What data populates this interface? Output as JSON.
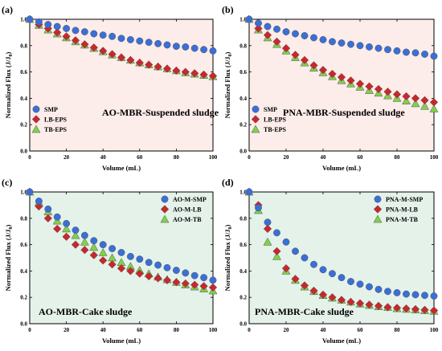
{
  "chart_data": [
    {
      "panel": "(a)",
      "type": "scatter",
      "annotation": "AO-MBR-Suspended sludge",
      "xlabel": "Volume (mL)",
      "ylabel_main": "Normalized Flux (J/J",
      "ylabel_sub": "0",
      "ylabel_tail": ")",
      "xlim": [
        0,
        100
      ],
      "ylim": [
        0,
        1.0
      ],
      "xticks": [
        0,
        20,
        40,
        60,
        80,
        100
      ],
      "yticks": [
        0.0,
        0.2,
        0.4,
        0.6,
        0.8,
        1.0
      ],
      "background": "#fcecea",
      "legend_position": "bottom-left",
      "series": [
        {
          "name": "SMP",
          "marker": "circle",
          "color": "#3a6fd8",
          "x": [
            0,
            5,
            10,
            15,
            20,
            25,
            30,
            35,
            40,
            45,
            50,
            55,
            60,
            65,
            70,
            75,
            80,
            85,
            90,
            95,
            100
          ],
          "y": [
            1.0,
            0.98,
            0.96,
            0.945,
            0.93,
            0.915,
            0.905,
            0.89,
            0.88,
            0.87,
            0.855,
            0.845,
            0.835,
            0.825,
            0.815,
            0.805,
            0.795,
            0.79,
            0.78,
            0.77,
            0.76
          ]
        },
        {
          "name": "LB-EPS",
          "marker": "diamond",
          "color": "#c8282c",
          "x": [
            0,
            5,
            10,
            15,
            20,
            25,
            30,
            35,
            40,
            45,
            50,
            55,
            60,
            65,
            70,
            75,
            80,
            85,
            90,
            95,
            100
          ],
          "y": [
            1.0,
            0.96,
            0.93,
            0.9,
            0.87,
            0.84,
            0.81,
            0.785,
            0.76,
            0.735,
            0.71,
            0.69,
            0.67,
            0.655,
            0.64,
            0.625,
            0.61,
            0.6,
            0.59,
            0.58,
            0.57
          ]
        },
        {
          "name": "TB-EPS",
          "marker": "triangle",
          "color": "#7fd14a",
          "x": [
            0,
            5,
            10,
            15,
            20,
            25,
            30,
            35,
            40,
            45,
            50,
            55,
            60,
            65,
            70,
            75,
            80,
            85,
            90,
            95,
            100
          ],
          "y": [
            1.0,
            0.955,
            0.92,
            0.89,
            0.86,
            0.83,
            0.805,
            0.78,
            0.755,
            0.73,
            0.71,
            0.69,
            0.67,
            0.655,
            0.64,
            0.625,
            0.61,
            0.595,
            0.585,
            0.575,
            0.565
          ]
        }
      ]
    },
    {
      "panel": "(b)",
      "type": "scatter",
      "annotation": "PNA-MBR-Suspended sludge",
      "xlabel": "Volume (mL)",
      "ylabel_main": "Normalized Flux (J/J",
      "ylabel_sub": "0",
      "ylabel_tail": ")",
      "xlim": [
        0,
        100
      ],
      "ylim": [
        0,
        1.0
      ],
      "xticks": [
        0,
        20,
        40,
        60,
        80,
        100
      ],
      "yticks": [
        0.0,
        0.2,
        0.4,
        0.6,
        0.8,
        1.0
      ],
      "background": "#fcecea",
      "legend_position": "bottom-left",
      "series": [
        {
          "name": "SMP",
          "marker": "circle",
          "color": "#3a6fd8",
          "x": [
            0,
            5,
            10,
            15,
            20,
            25,
            30,
            35,
            40,
            45,
            50,
            55,
            60,
            65,
            70,
            75,
            80,
            85,
            90,
            95,
            100
          ],
          "y": [
            1.0,
            0.97,
            0.945,
            0.925,
            0.905,
            0.89,
            0.875,
            0.86,
            0.845,
            0.83,
            0.82,
            0.81,
            0.8,
            0.79,
            0.78,
            0.77,
            0.76,
            0.75,
            0.745,
            0.735,
            0.72
          ]
        },
        {
          "name": "LB-EPS",
          "marker": "diamond",
          "color": "#c8282c",
          "x": [
            0,
            5,
            10,
            15,
            20,
            25,
            30,
            35,
            40,
            45,
            50,
            55,
            60,
            65,
            70,
            75,
            80,
            85,
            90,
            95,
            100
          ],
          "y": [
            1.0,
            0.93,
            0.88,
            0.83,
            0.78,
            0.73,
            0.69,
            0.65,
            0.615,
            0.585,
            0.56,
            0.535,
            0.51,
            0.49,
            0.47,
            0.45,
            0.43,
            0.415,
            0.4,
            0.385,
            0.37
          ]
        },
        {
          "name": "TB-EPS",
          "marker": "triangle",
          "color": "#7fd14a",
          "x": [
            0,
            5,
            10,
            15,
            20,
            25,
            30,
            35,
            40,
            45,
            50,
            55,
            60,
            65,
            70,
            75,
            80,
            85,
            90,
            95,
            100
          ],
          "y": [
            1.0,
            0.92,
            0.86,
            0.81,
            0.76,
            0.71,
            0.67,
            0.63,
            0.595,
            0.565,
            0.535,
            0.51,
            0.485,
            0.46,
            0.44,
            0.42,
            0.4,
            0.38,
            0.36,
            0.34,
            0.32
          ]
        }
      ]
    },
    {
      "panel": "(c)",
      "type": "scatter",
      "annotation": "AO-MBR-Cake sludge",
      "xlabel": "Volume (mL)",
      "ylabel_main": "Normalized Flux (J/J",
      "ylabel_sub": "0",
      "ylabel_tail": ")",
      "xlim": [
        0,
        100
      ],
      "ylim": [
        0,
        1.0
      ],
      "xticks": [
        0,
        20,
        40,
        60,
        80,
        100
      ],
      "yticks": [
        0.0,
        0.2,
        0.4,
        0.6,
        0.8,
        1.0
      ],
      "background": "#e4f2ea",
      "legend_position": "top-right",
      "series": [
        {
          "name": "AO-M-SMP",
          "marker": "circle",
          "color": "#3a6fd8",
          "x": [
            0,
            5,
            10,
            15,
            20,
            25,
            30,
            35,
            40,
            45,
            50,
            55,
            60,
            65,
            70,
            75,
            80,
            85,
            90,
            95,
            100
          ],
          "y": [
            1.0,
            0.93,
            0.87,
            0.81,
            0.76,
            0.71,
            0.67,
            0.63,
            0.6,
            0.57,
            0.54,
            0.51,
            0.49,
            0.465,
            0.445,
            0.425,
            0.405,
            0.385,
            0.365,
            0.35,
            0.33
          ]
        },
        {
          "name": "AO-M-LB",
          "marker": "diamond",
          "color": "#c8282c",
          "x": [
            0,
            5,
            10,
            15,
            20,
            25,
            30,
            35,
            40,
            45,
            50,
            55,
            60,
            65,
            70,
            75,
            80,
            85,
            90,
            95,
            100
          ],
          "y": [
            1.0,
            0.89,
            0.8,
            0.72,
            0.66,
            0.6,
            0.56,
            0.52,
            0.48,
            0.45,
            0.42,
            0.4,
            0.38,
            0.36,
            0.345,
            0.33,
            0.315,
            0.305,
            0.295,
            0.285,
            0.275
          ]
        },
        {
          "name": "AO-M-TB",
          "marker": "triangle",
          "color": "#7fd14a",
          "x": [
            0,
            5,
            10,
            15,
            20,
            25,
            30,
            35,
            40,
            45,
            50,
            55,
            60,
            65,
            70,
            75,
            80,
            85,
            90,
            95,
            100
          ],
          "y": [
            1.0,
            0.92,
            0.85,
            0.78,
            0.72,
            0.67,
            0.62,
            0.58,
            0.54,
            0.5,
            0.465,
            0.435,
            0.405,
            0.38,
            0.355,
            0.335,
            0.315,
            0.295,
            0.28,
            0.265,
            0.25
          ]
        }
      ]
    },
    {
      "panel": "(d)",
      "type": "scatter",
      "annotation": "PNA-MBR-Cake sludge",
      "xlabel": "Volume (mL)",
      "ylabel_main": "Normalized Flux (J/J",
      "ylabel_sub": "0",
      "ylabel_tail": ")",
      "xlim": [
        0,
        100
      ],
      "ylim": [
        0,
        1.0
      ],
      "xticks": [
        0,
        20,
        40,
        60,
        80,
        100
      ],
      "yticks": [
        0.0,
        0.2,
        0.4,
        0.6,
        0.8,
        1.0
      ],
      "background": "#e4f2ea",
      "legend_position": "top-right",
      "series": [
        {
          "name": "PNA-M-SMP",
          "marker": "circle",
          "color": "#3a6fd8",
          "x": [
            0,
            5,
            10,
            15,
            20,
            25,
            30,
            35,
            40,
            45,
            50,
            55,
            60,
            65,
            70,
            75,
            80,
            85,
            90,
            95,
            100
          ],
          "y": [
            1.0,
            0.88,
            0.77,
            0.69,
            0.62,
            0.55,
            0.5,
            0.45,
            0.41,
            0.38,
            0.35,
            0.32,
            0.3,
            0.28,
            0.26,
            0.245,
            0.235,
            0.225,
            0.22,
            0.215,
            0.21
          ]
        },
        {
          "name": "PNA-M-LB",
          "marker": "diamond",
          "color": "#c8282c",
          "x": [
            0,
            5,
            10,
            15,
            20,
            25,
            30,
            35,
            40,
            45,
            50,
            55,
            60,
            65,
            70,
            75,
            80,
            85,
            90,
            95,
            100
          ],
          "y": [
            1.0,
            0.9,
            0.72,
            0.55,
            0.42,
            0.34,
            0.29,
            0.25,
            0.22,
            0.2,
            0.18,
            0.165,
            0.155,
            0.145,
            0.135,
            0.125,
            0.12,
            0.115,
            0.11,
            0.105,
            0.1
          ]
        },
        {
          "name": "PNA-M-TB",
          "marker": "triangle",
          "color": "#7fd14a",
          "x": [
            0,
            5,
            10,
            15,
            20,
            25,
            30,
            35,
            40,
            45,
            50,
            55,
            60,
            65,
            70,
            75,
            80,
            85,
            90,
            95,
            100
          ],
          "y": [
            1.0,
            0.86,
            0.62,
            0.51,
            0.4,
            0.33,
            0.28,
            0.245,
            0.215,
            0.195,
            0.18,
            0.165,
            0.15,
            0.14,
            0.13,
            0.125,
            0.115,
            0.11,
            0.105,
            0.1,
            0.095
          ]
        }
      ]
    }
  ]
}
